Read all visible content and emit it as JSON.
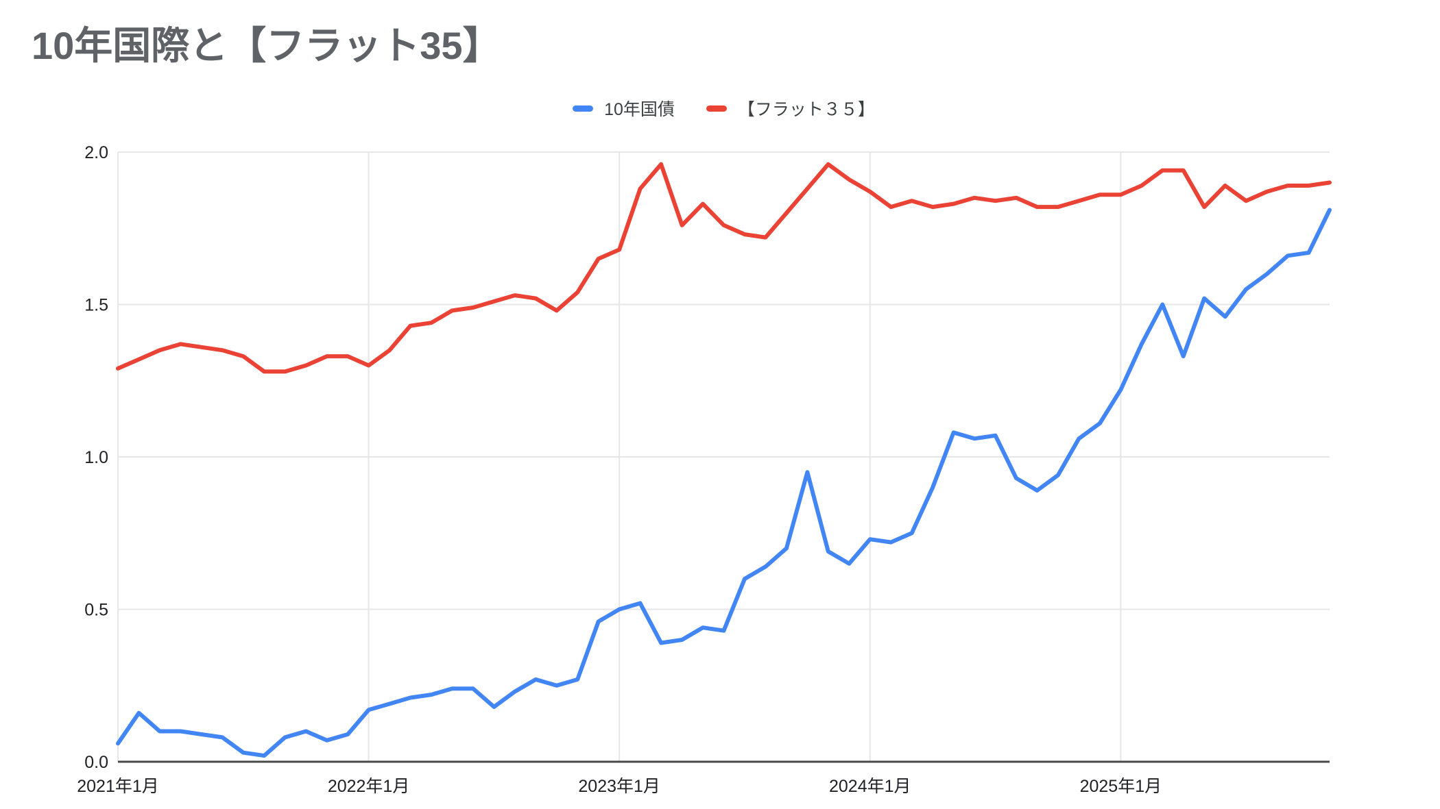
{
  "title": "10年国際と【フラット35】",
  "legend": [
    {
      "label": "10年国債",
      "color": "#4285f4"
    },
    {
      "label": "【フラット３５】",
      "color": "#ea4335"
    }
  ],
  "chart_data": {
    "type": "line",
    "title": "10年国際と【フラット35】",
    "xlabel": "",
    "ylabel": "",
    "ylim": [
      0,
      2.0
    ],
    "grid": true,
    "legend_position": "top",
    "x_unit": "month",
    "n_points": 59,
    "months": [
      "2021-01",
      "2021-02",
      "2021-03",
      "2021-04",
      "2021-05",
      "2021-06",
      "2021-07",
      "2021-08",
      "2021-09",
      "2021-10",
      "2021-11",
      "2021-12",
      "2022-01",
      "2022-02",
      "2022-03",
      "2022-04",
      "2022-05",
      "2022-06",
      "2022-07",
      "2022-08",
      "2022-09",
      "2022-10",
      "2022-11",
      "2022-12",
      "2023-01",
      "2023-02",
      "2023-03",
      "2023-04",
      "2023-05",
      "2023-06",
      "2023-07",
      "2023-08",
      "2023-09",
      "2023-10",
      "2023-11",
      "2023-12",
      "2024-01",
      "2024-02",
      "2024-03",
      "2024-04",
      "2024-05",
      "2024-06",
      "2024-07",
      "2024-08",
      "2024-09",
      "2024-10",
      "2024-11",
      "2024-12",
      "2025-01",
      "2025-02",
      "2025-03",
      "2025-04",
      "2025-05",
      "2025-06",
      "2025-07",
      "2025-08",
      "2025-09",
      "2025-10",
      "2025-11"
    ],
    "x_ticks": [
      {
        "index": 0,
        "label": "2021年1月"
      },
      {
        "index": 12,
        "label": "2022年1月"
      },
      {
        "index": 24,
        "label": "2023年1月"
      },
      {
        "index": 36,
        "label": "2024年1月"
      },
      {
        "index": 48,
        "label": "2025年1月"
      }
    ],
    "y_ticks": [
      {
        "value": 0,
        "label": "0.0"
      },
      {
        "value": 0.5,
        "label": "0.5"
      },
      {
        "value": 1,
        "label": "1.0"
      },
      {
        "value": 1.5,
        "label": "1.5"
      },
      {
        "value": 2,
        "label": "2.0"
      }
    ],
    "series": [
      {
        "name": "10年国債",
        "color": "#4285f4",
        "values": [
          0.06,
          0.16,
          0.1,
          0.1,
          0.09,
          0.08,
          0.03,
          0.02,
          0.08,
          0.1,
          0.07,
          0.09,
          0.17,
          0.19,
          0.21,
          0.22,
          0.24,
          0.24,
          0.18,
          0.23,
          0.27,
          0.25,
          0.27,
          0.46,
          0.5,
          0.52,
          0.39,
          0.4,
          0.44,
          0.43,
          0.6,
          0.64,
          0.7,
          0.95,
          0.69,
          0.65,
          0.73,
          0.72,
          0.75,
          0.9,
          1.08,
          1.06,
          1.07,
          0.93,
          0.89,
          0.94,
          1.06,
          1.11,
          1.22,
          1.37,
          1.5,
          1.33,
          1.52,
          1.46,
          1.55,
          1.6,
          1.66,
          1.67,
          1.81
        ]
      },
      {
        "name": "【フラット３５】",
        "color": "#ea4335",
        "values": [
          1.29,
          1.32,
          1.35,
          1.37,
          1.36,
          1.35,
          1.33,
          1.28,
          1.28,
          1.3,
          1.33,
          1.33,
          1.3,
          1.35,
          1.43,
          1.44,
          1.48,
          1.49,
          1.51,
          1.53,
          1.52,
          1.48,
          1.54,
          1.65,
          1.68,
          1.88,
          1.96,
          1.76,
          1.83,
          1.76,
          1.73,
          1.72,
          1.8,
          1.88,
          1.96,
          1.91,
          1.87,
          1.82,
          1.84,
          1.82,
          1.83,
          1.85,
          1.84,
          1.85,
          1.82,
          1.82,
          1.84,
          1.86,
          1.86,
          1.89,
          1.94,
          1.94,
          1.82,
          1.89,
          1.84,
          1.87,
          1.89,
          1.89,
          1.9
        ]
      }
    ],
    "colors": {
      "grid": "#e6e6e6",
      "axis": "#4a4a4a",
      "tick_label": "#202124",
      "title": "#5f6368"
    }
  }
}
